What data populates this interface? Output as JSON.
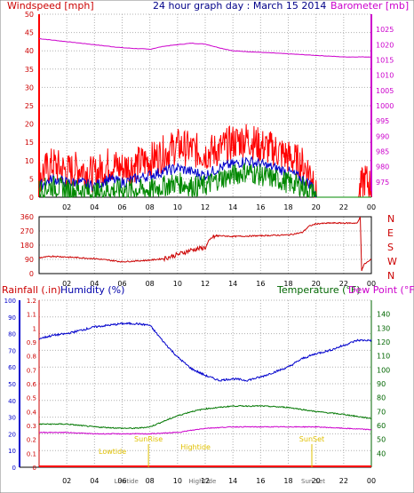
{
  "header": {
    "left_label": "Windspeed [mph]",
    "center_label": "24 hour graph day : March 15 2014",
    "right_label": "Barometer [mb]"
  },
  "lower_header": {
    "rain_label": "Rainfall (.in)",
    "humidity_label": "Humidity (%)",
    "temp_label": "Temperature (°F)",
    "dew_label": "Dew Point (°F)"
  },
  "colors": {
    "wind": "#ff0000",
    "gust": "#0000cc",
    "avg": "#008800",
    "baro": "#cc00cc",
    "dir": "#cc0000",
    "humidity": "#0000cc",
    "temperature": "#007700",
    "dewpoint": "#cc00cc",
    "rain": "#ff0000",
    "grid": "#b0b0b0",
    "sun": "#e0c000"
  },
  "chart_data": [
    {
      "type": "line",
      "name_key": "wind",
      "x_ticks": [
        "02",
        "04",
        "06",
        "08",
        "10",
        "12",
        "14",
        "16",
        "18",
        "20",
        "22",
        "00"
      ],
      "y_left": {
        "label": "Windspeed [mph]",
        "ylim": [
          0,
          50
        ],
        "ticks": [
          "0",
          "5",
          "10",
          "15",
          "20",
          "25",
          "30",
          "35",
          "40",
          "45",
          "50"
        ]
      },
      "y_right": {
        "label": "Barometer [mb]",
        "ylim": [
          970,
          1030
        ],
        "ticks": [
          "975",
          "980",
          "985",
          "990",
          "995",
          "1000",
          "1005",
          "1010",
          "1015",
          "1020",
          "1025"
        ]
      },
      "series": [
        {
          "key": "baro",
          "axis": "right",
          "x": [
            0,
            2,
            4,
            6,
            8,
            9,
            10,
            11,
            12,
            13,
            14,
            16,
            18,
            20,
            22,
            24
          ],
          "y": [
            1022,
            1021,
            1020,
            1019,
            1018.5,
            1019.5,
            1020,
            1020.5,
            1020.2,
            1019,
            1018,
            1017.5,
            1017,
            1016.5,
            1016,
            1016
          ]
        },
        {
          "key": "wind",
          "axis": "left",
          "x": [
            0,
            1,
            2,
            3,
            4,
            5,
            6,
            7,
            8,
            9,
            10,
            11,
            12,
            13,
            14,
            15,
            16,
            17,
            18,
            19,
            19.8,
            20,
            22,
            23,
            23.5,
            24
          ],
          "y": [
            6,
            9,
            7,
            8,
            6,
            9,
            8,
            9,
            10,
            12,
            14,
            13,
            12,
            13,
            15,
            16,
            14,
            13,
            11,
            9,
            6,
            0,
            0,
            0,
            5,
            3
          ]
        },
        {
          "key": "gust",
          "axis": "left",
          "x": [
            0,
            1,
            2,
            3,
            4,
            5,
            6,
            7,
            8,
            9,
            10,
            11,
            12,
            13,
            14,
            15,
            16,
            17,
            18,
            19,
            19.8,
            20,
            24
          ],
          "y": [
            3,
            5,
            4,
            4,
            3,
            5,
            4,
            5,
            6,
            7,
            8,
            7,
            6,
            8,
            9,
            10,
            9,
            8,
            7,
            5,
            3,
            0,
            0
          ]
        },
        {
          "key": "avg",
          "axis": "left",
          "x": [
            0,
            1,
            2,
            3,
            4,
            5,
            6,
            7,
            8,
            9,
            10,
            11,
            12,
            13,
            14,
            15,
            16,
            17,
            18,
            19,
            19.8,
            20,
            24
          ],
          "y": [
            2,
            3,
            2,
            2,
            1,
            2,
            2,
            2,
            2,
            3,
            4,
            3,
            3,
            5,
            6,
            7,
            6,
            5,
            4,
            3,
            1,
            0,
            0
          ]
        }
      ]
    },
    {
      "type": "line",
      "name_key": "direction",
      "x_ticks": [
        "02",
        "04",
        "06",
        "08",
        "10",
        "12",
        "14",
        "16",
        "18",
        "20",
        "22",
        "00"
      ],
      "y_left": {
        "ylim": [
          0,
          360
        ],
        "ticks": [
          "0",
          "90",
          "180",
          "270",
          "360"
        ]
      },
      "y_right": {
        "ticks": [
          "N",
          "W",
          "S",
          "E",
          "N"
        ]
      },
      "series": [
        {
          "key": "dir",
          "x": [
            0,
            1,
            2,
            3,
            4,
            5,
            6,
            7,
            8,
            9,
            10,
            11,
            12,
            12.5,
            13,
            14,
            16,
            18,
            19,
            19.5,
            20,
            21,
            22,
            23,
            23.2,
            23.3,
            23.5,
            24
          ],
          "y": [
            100,
            110,
            105,
            100,
            95,
            85,
            75,
            80,
            85,
            95,
            120,
            150,
            165,
            230,
            240,
            235,
            240,
            245,
            260,
            300,
            315,
            320,
            320,
            320,
            360,
            20,
            60,
            90
          ]
        }
      ]
    },
    {
      "type": "line",
      "name_key": "humidity_temp",
      "x_ticks": [
        "02",
        "04",
        "06",
        "08",
        "10",
        "12",
        "14",
        "16",
        "18",
        "20",
        "22",
        "00"
      ],
      "y_left_rain": {
        "label": "Rainfall (.in)",
        "ylim": [
          0,
          1.2
        ],
        "ticks": [
          "0",
          "0.1",
          "0.2",
          "0.3",
          "0.4",
          "0.5",
          "0.6",
          "0.7",
          "0.8",
          "0.9",
          "1",
          "1.1",
          "1.2"
        ]
      },
      "y_left_hum": {
        "label": "Humidity (%)",
        "ylim": [
          0,
          100
        ],
        "ticks": [
          "0",
          "10",
          "20",
          "30",
          "40",
          "50",
          "60",
          "70",
          "80",
          "90",
          "100"
        ]
      },
      "y_right": {
        "label": "Temperature (°F)",
        "ylim": [
          30,
          150
        ],
        "ticks": [
          "40",
          "50",
          "60",
          "70",
          "80",
          "90",
          "100",
          "110",
          "120",
          "130",
          "140"
        ]
      },
      "series": [
        {
          "key": "humidity",
          "axis": "hum",
          "x": [
            0,
            1,
            2,
            4,
            6,
            7,
            8,
            9,
            10,
            11,
            12,
            13,
            14,
            15,
            16,
            17,
            18,
            19,
            20,
            21,
            22,
            23,
            24
          ],
          "y": [
            77,
            79,
            80,
            84,
            86,
            86,
            85,
            75,
            66,
            59,
            55,
            52,
            53,
            52,
            54,
            57,
            60,
            65,
            68,
            70,
            73,
            76,
            76
          ]
        },
        {
          "key": "temperature",
          "axis": "temp",
          "x": [
            0,
            2,
            4,
            6,
            7,
            8,
            9,
            10,
            11,
            12,
            13,
            14,
            16,
            18,
            20,
            22,
            24
          ],
          "y": [
            61,
            61,
            59,
            58,
            58,
            59,
            63,
            67,
            70,
            72,
            73,
            74,
            74,
            73,
            70,
            68,
            65
          ]
        },
        {
          "key": "dewpoint",
          "axis": "temp",
          "x": [
            0,
            2,
            4,
            6,
            8,
            10,
            12,
            14,
            16,
            18,
            20,
            22,
            24
          ],
          "y": [
            55,
            55,
            54,
            54,
            54,
            55,
            58,
            59,
            59,
            59,
            59,
            58,
            57
          ]
        },
        {
          "key": "rain",
          "axis": "rain",
          "x": [
            0,
            24
          ],
          "y": [
            0,
            0
          ]
        }
      ],
      "annotations": [
        {
          "label": "Lowtide",
          "hour": 5.3
        },
        {
          "label": "SunRise",
          "hour": 7.9
        },
        {
          "label": "Hightide",
          "hour": 11.3
        },
        {
          "label": "SunSet",
          "hour": 19.7
        }
      ],
      "bottom_labels": [
        {
          "label": "Lowtide",
          "hour": 6.3
        },
        {
          "label": "HighTide",
          "hour": 11.8
        },
        {
          "label": "Sun Set",
          "hour": 19.8
        }
      ]
    }
  ]
}
